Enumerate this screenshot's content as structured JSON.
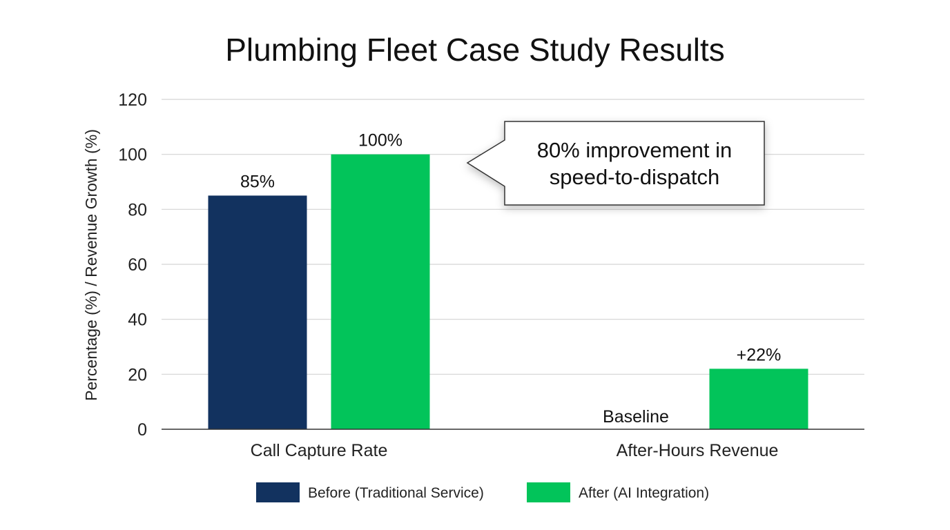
{
  "chart_data": {
    "type": "bar",
    "title": "Plumbing Fleet Case Study Results",
    "xlabel": "",
    "ylabel": "Percentage (%) / Revenue Growth (%)",
    "ylim": [
      0,
      120
    ],
    "yticks": [
      0,
      20,
      40,
      60,
      80,
      100,
      120
    ],
    "grid": true,
    "legend_position": "bottom",
    "categories": [
      "Call Capture Rate",
      "After-Hours Revenue"
    ],
    "series": [
      {
        "name": "Before (Traditional Service)",
        "color": "#12325f",
        "values": [
          85,
          0
        ],
        "labels": [
          "85%",
          "Baseline"
        ]
      },
      {
        "name": "After (AI Integration)",
        "color": "#02c45a",
        "values": [
          100,
          22
        ],
        "labels": [
          "100%",
          "+22%"
        ]
      }
    ],
    "annotation": {
      "lines": [
        "80% improvement in",
        "speed-to-dispatch"
      ],
      "points_to": {
        "category": "Call Capture Rate",
        "series": "After (AI Integration)"
      }
    }
  }
}
